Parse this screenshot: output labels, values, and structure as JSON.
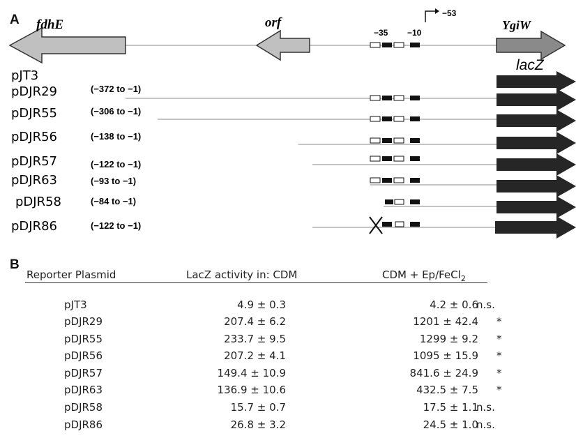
{
  "panel_a": {
    "letter": "A",
    "genes": {
      "fdhE": "fdhE",
      "orf": "orf",
      "ygiW": "YgiW",
      "lacZ": "lacZ"
    },
    "promoter": {
      "minus35": "−35",
      "minus10": "−10",
      "tss": "−53"
    },
    "constructs": [
      {
        "name": "pJT3",
        "range": "",
        "boxes": "none",
        "mutated": false
      },
      {
        "name": "pDJR29",
        "range": "(−372 to −1)",
        "boxes": "all",
        "mutated": false
      },
      {
        "name": "pDJR55",
        "range": "(−306 to −1)",
        "boxes": "all",
        "mutated": false
      },
      {
        "name": "pDJR56",
        "range": "(−138 to −1)",
        "boxes": "all",
        "mutated": false
      },
      {
        "name": "pDJR57",
        "range": "(−122 to −1)",
        "boxes": "all",
        "mutated": false
      },
      {
        "name": "pDJR63",
        "range": "(−93 to −1)",
        "boxes": "all",
        "mutated": false
      },
      {
        "name": "pDJR58",
        "range": "(−84 to −1)",
        "boxes": "truncated",
        "mutated": false
      },
      {
        "name": "pDJR86",
        "range": "(−122 to −1)",
        "boxes": "all",
        "mutated": true
      }
    ]
  },
  "panel_b": {
    "letter": "B",
    "headers": {
      "plasmid": "Reporter Plasmid",
      "cdm": "LacZ activity in:  CDM",
      "ep_main": "CDM + Ep/FeCl",
      "ep_sub": "2"
    },
    "rows": [
      {
        "plasmid": "pJT3",
        "cdm": "4.9 ± 0.3",
        "ep": "4.2 ± 0.6",
        "sig": "n.s."
      },
      {
        "plasmid": "pDJR29",
        "cdm": "207.4 ± 6.2",
        "ep": "1201 ± 42.4",
        "sig": "*"
      },
      {
        "plasmid": "pDJR55",
        "cdm": "233.7 ± 9.5",
        "ep": "1299 ± 9.2",
        "sig": "*"
      },
      {
        "plasmid": "pDJR56",
        "cdm": "207.2 ± 4.1",
        "ep": "1095 ± 15.9",
        "sig": "*"
      },
      {
        "plasmid": "pDJR57",
        "cdm": "149.4 ± 10.9",
        "ep": "841.6 ± 24.9",
        "sig": "*"
      },
      {
        "plasmid": "pDJR63",
        "cdm": "136.9 ± 10.6",
        "ep": "432.5 ± 7.5",
        "sig": "*"
      },
      {
        "plasmid": "pDJR58",
        "cdm": "15.7 ± 0.7",
        "ep": "17.5 ± 1.1",
        "sig": "n.s."
      },
      {
        "plasmid": "pDJR86",
        "cdm": "26.8 ± 3.2",
        "ep": "24.5 ± 1.0",
        "sig": "n.s."
      }
    ]
  },
  "colors": {
    "gene_arrow_fill": "#c0c0c0",
    "lacz_fill": "#262626",
    "line": "#888888"
  }
}
